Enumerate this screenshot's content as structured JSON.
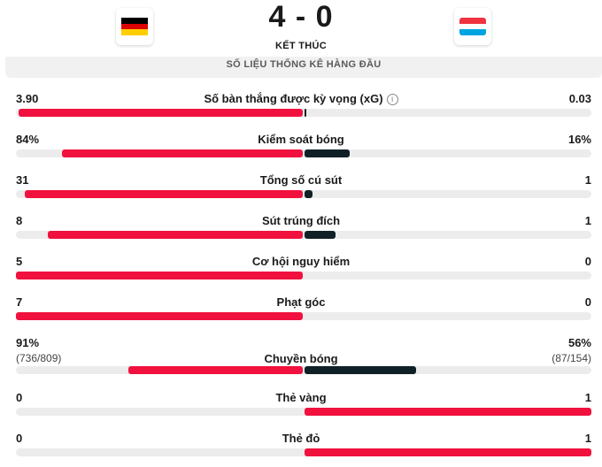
{
  "match": {
    "score": "4 - 0",
    "status": "KẾT THÚC",
    "home_flag": "germany-flag",
    "away_flag": "luxembourg-flag"
  },
  "section_title": "SỐ LIỆU THỐNG KÊ HÀNG ĐẦU",
  "colors": {
    "home_bar": "#f0113e",
    "away_bar": "#0f2126",
    "track": "#ececec"
  },
  "stats": [
    {
      "label": "Số bàn thắng được kỳ vọng (xG)",
      "home": "3.90",
      "away": "0.03",
      "home_fraction": 0.992,
      "away_fraction": 0.008,
      "has_info_icon": true
    },
    {
      "label": "Kiểm soát bóng",
      "home": "84%",
      "away": "16%",
      "home_fraction": 0.84,
      "away_fraction": 0.16
    },
    {
      "label": "Tổng số cú sút",
      "home": "31",
      "away": "1",
      "home_fraction": 0.97,
      "away_fraction": 0.03
    },
    {
      "label": "Sút trúng đích",
      "home": "8",
      "away": "1",
      "home_fraction": 0.89,
      "away_fraction": 0.11
    },
    {
      "label": "Cơ hội nguy hiểm",
      "home": "5",
      "away": "0",
      "home_fraction": 1.0,
      "away_fraction": 0.0
    },
    {
      "label": "Phạt góc",
      "home": "7",
      "away": "0",
      "home_fraction": 1.0,
      "away_fraction": 0.0
    },
    {
      "label": "Chuyền bóng",
      "home": "91%",
      "away": "56%",
      "home_sub": "(736/809)",
      "away_sub": "(87/154)",
      "home_fraction": 0.61,
      "away_fraction": 0.39
    },
    {
      "label": "Thẻ vàng",
      "home": "0",
      "away": "1",
      "home_fraction": 0.0,
      "away_fraction": 1.0
    },
    {
      "label": "Thẻ đỏ",
      "home": "0",
      "away": "1",
      "home_fraction": 0.0,
      "away_fraction": 1.0
    }
  ]
}
